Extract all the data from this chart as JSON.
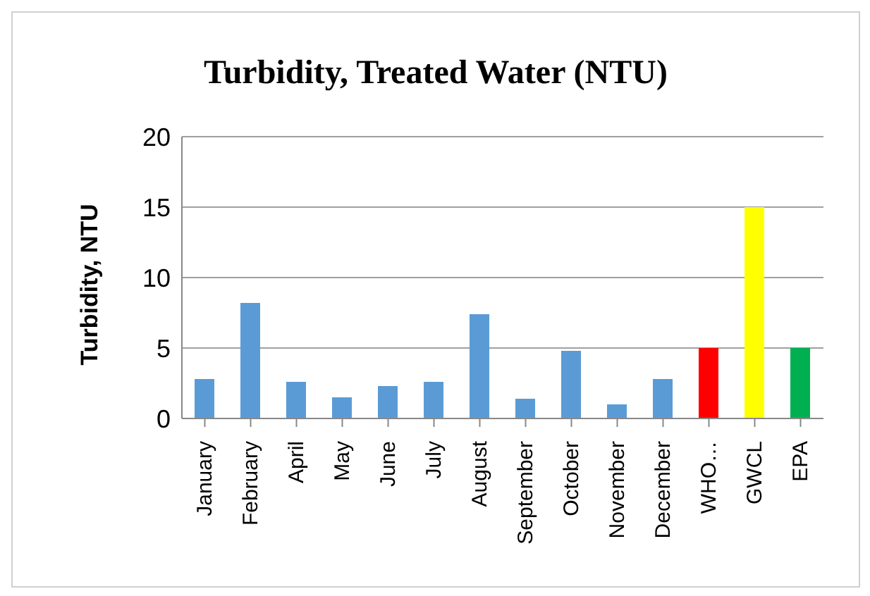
{
  "chart_data": {
    "type": "bar",
    "title": "Turbidity, Treated Water (NTU)",
    "ylabel": "Turbidity, NTU",
    "categories": [
      "January",
      "February",
      "April",
      "May",
      "June",
      "July",
      "August",
      "September",
      "October",
      "November",
      "December",
      "WHO…",
      "GWCL",
      "EPA"
    ],
    "values": [
      2.8,
      8.2,
      2.6,
      1.5,
      2.3,
      2.6,
      7.4,
      1.4,
      4.8,
      1.0,
      2.8,
      5,
      15,
      5
    ],
    "colors": [
      "#5b9bd5",
      "#5b9bd5",
      "#5b9bd5",
      "#5b9bd5",
      "#5b9bd5",
      "#5b9bd5",
      "#5b9bd5",
      "#5b9bd5",
      "#5b9bd5",
      "#5b9bd5",
      "#5b9bd5",
      "#ff0000",
      "#ffff00",
      "#00b050"
    ],
    "ylim": [
      0,
      20
    ],
    "yticks": [
      0,
      5,
      10,
      15,
      20
    ],
    "grid": "y"
  }
}
